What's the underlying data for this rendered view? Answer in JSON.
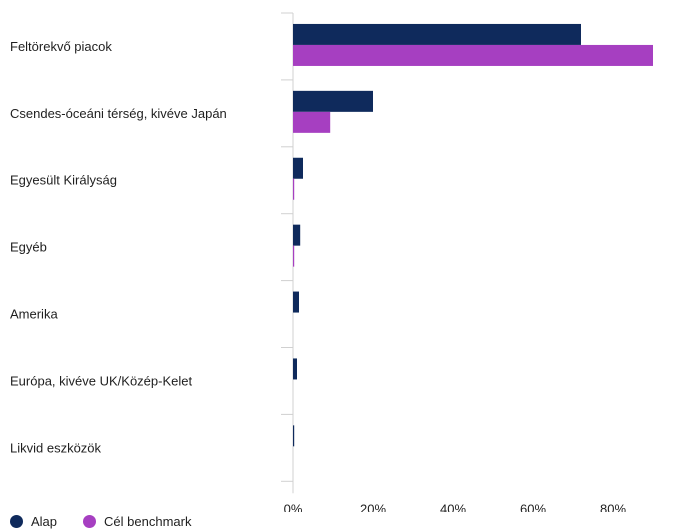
{
  "chart_data": {
    "type": "bar",
    "orientation": "horizontal",
    "categories": [
      "Feltörekvő piacok",
      "Csendes-óceáni térség, kivéve Japán",
      "Egyesült Királyság",
      "Egyéb",
      "Amerika",
      "Európa, kivéve UK/Közép-Kelet",
      "Likvid eszközök"
    ],
    "series": [
      {
        "name": "Alap",
        "color": "#0f2a5c",
        "values": [
          72.0,
          20.0,
          2.5,
          1.8,
          1.5,
          1.0,
          0.3
        ]
      },
      {
        "name": "Cél benchmark",
        "color": "#a63fc1",
        "values": [
          90.0,
          9.3,
          0.3,
          0.3,
          0.0,
          0.0,
          0.0
        ]
      }
    ],
    "xlim": [
      0,
      100
    ],
    "xticks": [
      0,
      20,
      40,
      60,
      80
    ],
    "xtick_labels": [
      "0%",
      "20%",
      "40%",
      "60%",
      "80%"
    ],
    "legend_position": "bottom-left",
    "grid": false
  }
}
